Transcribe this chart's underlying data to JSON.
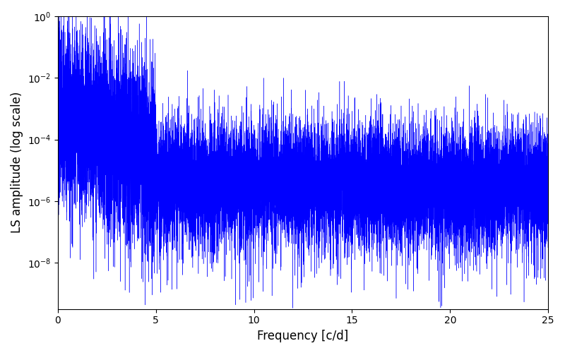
{
  "title": "",
  "xlabel": "Frequency [c/d]",
  "ylabel": "LS amplitude (log scale)",
  "xlim": [
    0,
    25
  ],
  "ylim_log_min": -9.5,
  "ylim_log_max": 0,
  "line_color": "#0000FF",
  "line_width": 0.3,
  "figsize": [
    8.0,
    5.0
  ],
  "dpi": 100,
  "freq_max": 25.0,
  "num_points": 15000,
  "seed": 7
}
